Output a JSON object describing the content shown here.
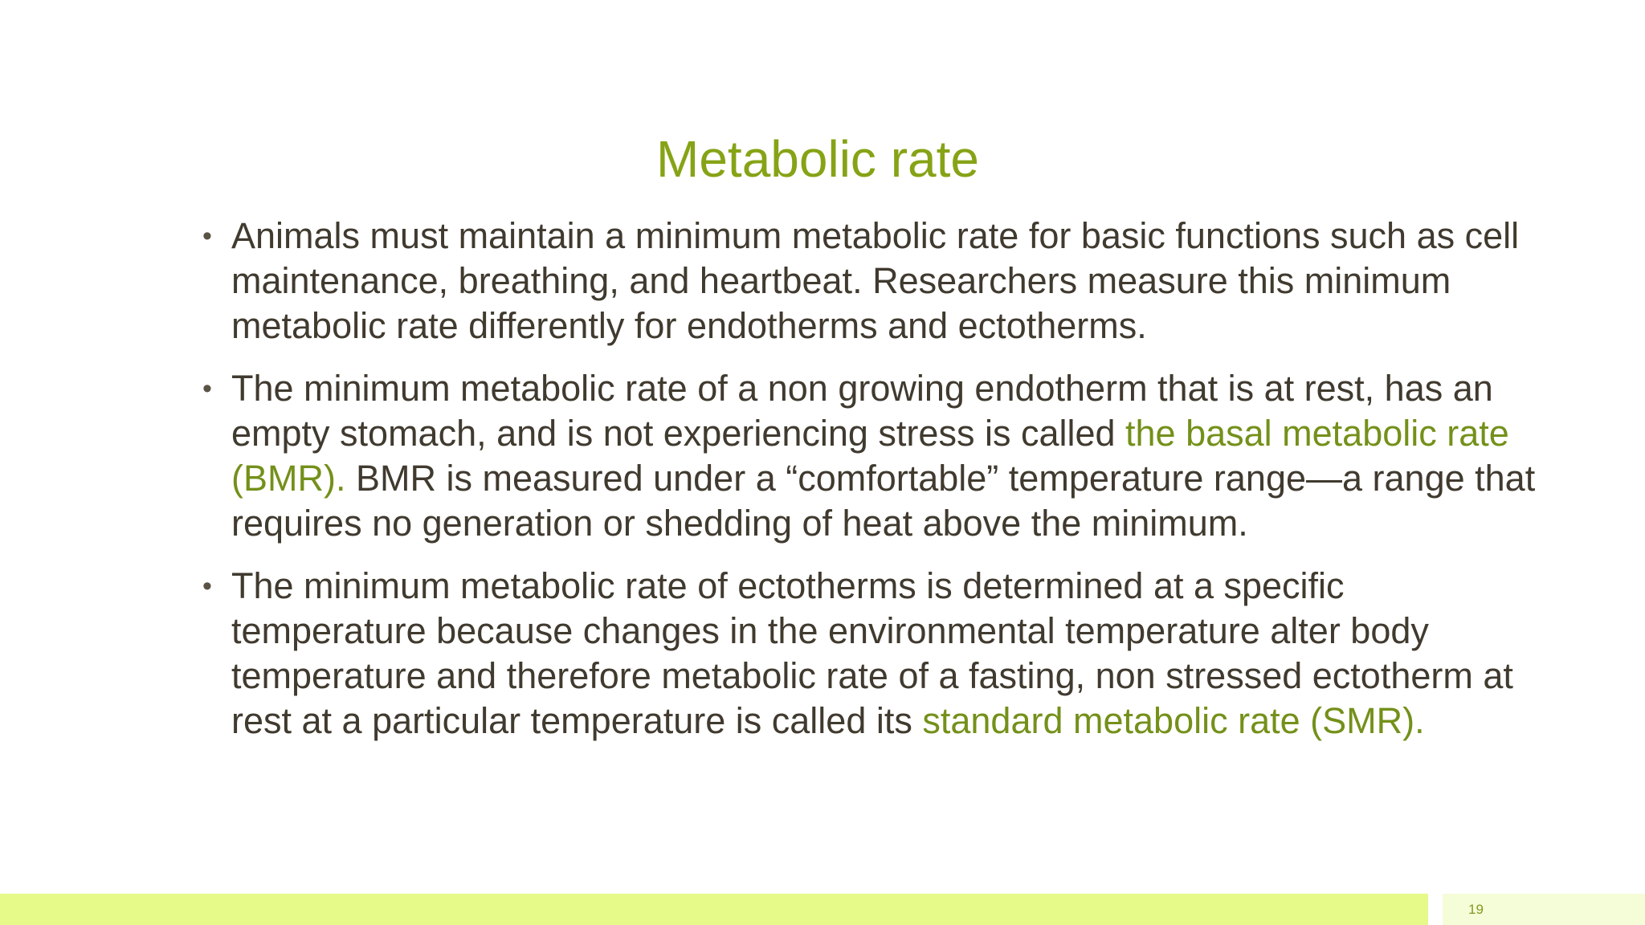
{
  "slide": {
    "title": "Metabolic rate",
    "page_number": "19"
  },
  "bullets": [
    {
      "parts": [
        "Animals must maintain a minimum metabolic rate for basic functions such as cell maintenance, breathing, and heartbeat. Researchers measure this minimum metabolic rate differently for endotherms and ectotherms."
      ]
    },
    {
      "parts": [
        "The minimum metabolic rate of a non growing endotherm that is at rest, has an empty stomach, and is not experiencing stress is called ",
        "the basal metabolic rate (BMR).",
        " BMR is measured under a “comfortable” temperature range—a range that requires no generation or shedding of heat above the minimum."
      ]
    },
    {
      "parts": [
        "The minimum metabolic rate of ectotherms is determined at a specific temperature because changes in the environmental temperature alter body temperature and therefore metabolic rate of a fasting, non stressed ectotherm at rest at a particular temperature is called its ",
        "standard metabolic rate (SMR)."
      ]
    }
  ],
  "colors": {
    "title": "#86a316",
    "body_text": "#403a2f",
    "highlight_term": "#74901a",
    "footer_bar": "#e5fa88",
    "page_box": "#f5fdd8"
  }
}
